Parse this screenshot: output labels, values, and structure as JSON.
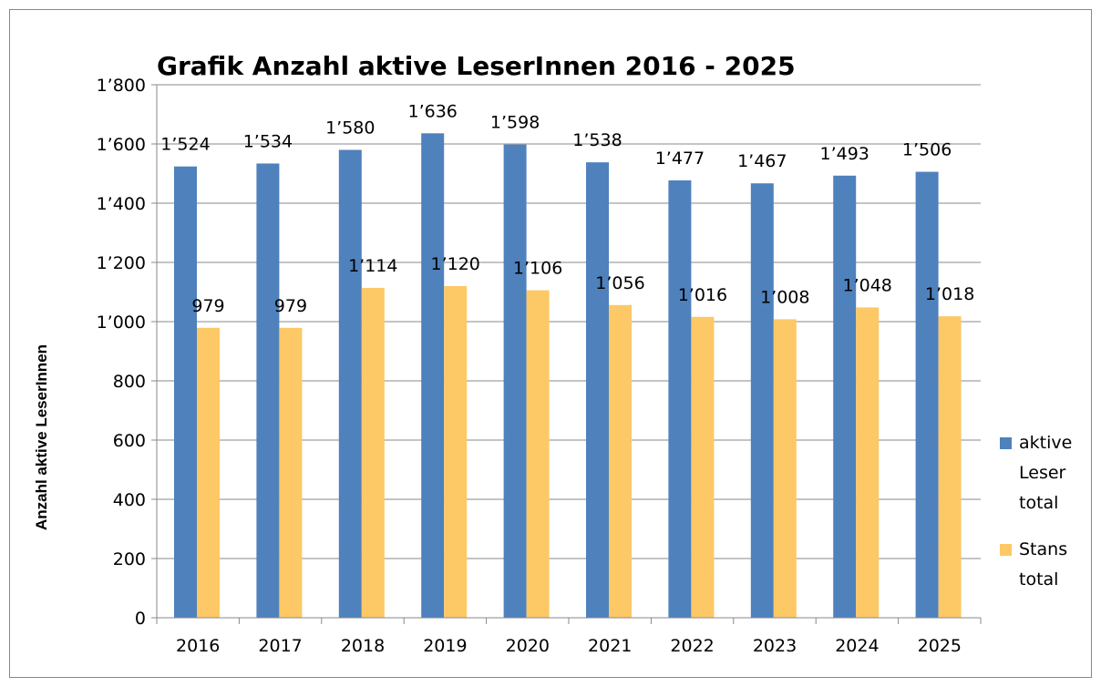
{
  "chart_data": {
    "type": "bar",
    "title": "Grafik Anzahl aktive LeserInnen 2016 - 2025",
    "y_label": "Anzahl aktive LeserInnen",
    "categories": [
      "2016",
      "2017",
      "2018",
      "2019",
      "2020",
      "2021",
      "2022",
      "2023",
      "2024",
      "2025"
    ],
    "series": [
      {
        "name": "aktive Leser total",
        "color": "#4f81bd",
        "values": [
          1524,
          1534,
          1580,
          1636,
          1598,
          1538,
          1477,
          1467,
          1493,
          1506
        ],
        "value_labels": [
          "1’524",
          "1’534",
          "1’580",
          "1’636",
          "1’598",
          "1’538",
          "1’477",
          "1’467",
          "1’493",
          "1’506"
        ]
      },
      {
        "name": "Stans total",
        "color": "#fdc866",
        "values": [
          979,
          979,
          1114,
          1120,
          1106,
          1056,
          1016,
          1008,
          1048,
          1018
        ],
        "value_labels": [
          "979",
          "979",
          "1’114",
          "1’120",
          "1’106",
          "1’056",
          "1’016",
          "1’008",
          "1’048",
          "1’018"
        ]
      }
    ],
    "ylim": [
      0,
      1800
    ],
    "yticks": [
      0,
      200,
      400,
      600,
      800,
      {
        "value": 1000,
        "label": "1’000"
      },
      {
        "value": 1200,
        "label": "1’200"
      },
      {
        "value": 1400,
        "label": "1’400"
      },
      {
        "value": 1600,
        "label": "1’600"
      },
      {
        "value": 1800,
        "label": "1’800"
      }
    ],
    "grid": true,
    "legend": "right"
  }
}
